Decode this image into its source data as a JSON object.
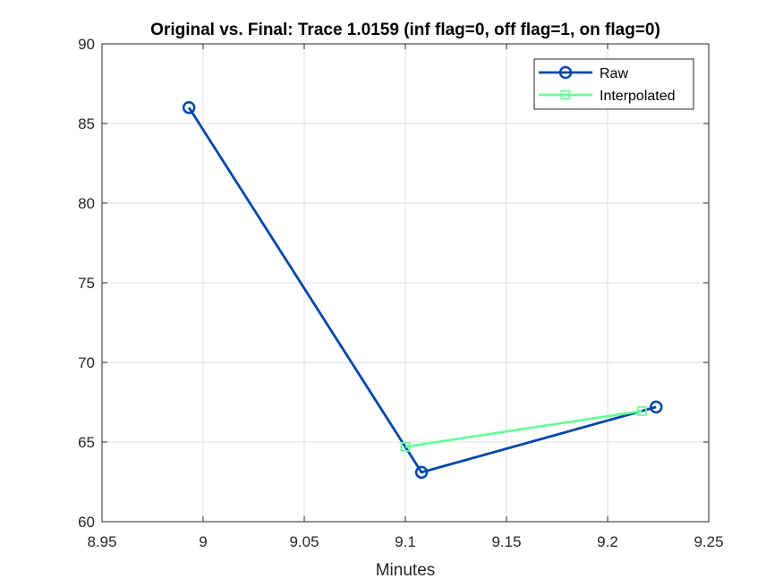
{
  "chart_data": {
    "type": "line",
    "title": "Original vs. Final: Trace 1.0159 (inf flag=0, off flag=1, on flag=0)",
    "xlabel": "Minutes",
    "ylabel": "",
    "xlim": [
      8.95,
      9.25
    ],
    "ylim": [
      60,
      90
    ],
    "xticks": [
      "8.95",
      "9",
      "9.05",
      "9.1",
      "9.15",
      "9.2",
      "9.25"
    ],
    "yticks": [
      "60",
      "65",
      "70",
      "75",
      "80",
      "85",
      "90"
    ],
    "grid": true,
    "legend_position": "top-right",
    "series": [
      {
        "name": "Raw",
        "color": "#0047ab",
        "marker": "circle",
        "x": [
          8.993,
          9.108,
          9.224
        ],
        "y": [
          86.0,
          63.1,
          67.2
        ]
      },
      {
        "name": "Interpolated",
        "color": "#66ff99",
        "marker": "square",
        "x": [
          9.1,
          9.217
        ],
        "y": [
          64.7,
          66.95
        ]
      }
    ]
  }
}
